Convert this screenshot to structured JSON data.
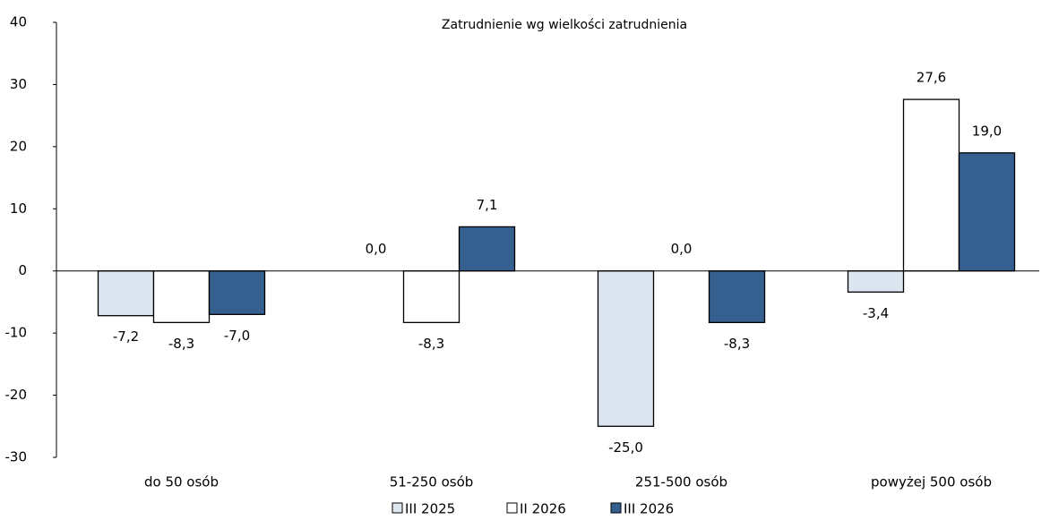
{
  "chart_data": {
    "type": "bar",
    "title": "Zatrudnienie wg wielkości zatrudnienia",
    "categories": [
      "do 50 osób",
      "51-250 osób",
      "251-500 osób",
      "powyżej 500 osób"
    ],
    "series": [
      {
        "name": "III 2025",
        "color": "#dce6f1",
        "values": [
          -7.2,
          0.0,
          -25.0,
          -3.4
        ],
        "value_labels": [
          "-7,2",
          "0,0",
          "-25,0",
          "-3,4"
        ]
      },
      {
        "name": "II 2026",
        "color": "#ffffff",
        "values": [
          -8.3,
          -8.3,
          0.0,
          27.6
        ],
        "value_labels": [
          "-8,3",
          "-8,3",
          "0,0",
          "27,6"
        ]
      },
      {
        "name": "III 2026",
        "color": "#355f8f",
        "values": [
          -7.0,
          7.1,
          -8.3,
          19.0
        ],
        "value_labels": [
          "-7,0",
          "7,1",
          "-8,3",
          "19,0"
        ]
      }
    ],
    "ylim": [
      -30,
      40
    ],
    "yticks": [
      -30,
      -20,
      -10,
      0,
      10,
      20,
      30,
      40
    ],
    "legend": "bottom"
  }
}
